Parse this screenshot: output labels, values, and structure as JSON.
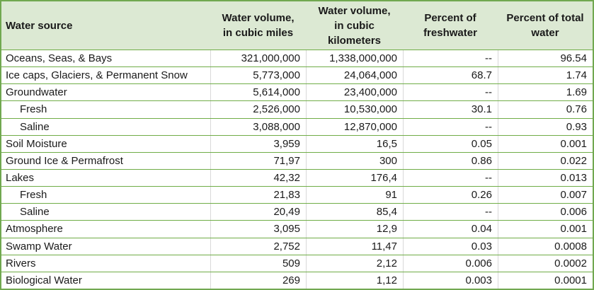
{
  "colors": {
    "outer_border": "#71a850",
    "row_border": "#70ad47",
    "column_border": "#d9d9d9",
    "header_background": "#dce9d3",
    "text": "#1a1a1a"
  },
  "table": {
    "columns": [
      {
        "label": "Water source"
      },
      {
        "label": "Water volume,\nin cubic miles"
      },
      {
        "label": "Water volume,\nin cubic\nkilometers"
      },
      {
        "label": "Percent of\nfreshwater"
      },
      {
        "label": "Percent of total\nwater"
      }
    ],
    "rows": [
      {
        "source": "Oceans, Seas, & Bays",
        "indent": false,
        "miles": "321,000,000",
        "km": "1,338,000,000",
        "freshwater": "--",
        "total": "96.54"
      },
      {
        "source": "Ice caps, Glaciers, & Permanent Snow",
        "indent": false,
        "miles": "5,773,000",
        "km": "24,064,000",
        "freshwater": "68.7",
        "total": "1.74"
      },
      {
        "source": "Groundwater",
        "indent": false,
        "miles": "5,614,000",
        "km": "23,400,000",
        "freshwater": "--",
        "total": "1.69"
      },
      {
        "source": "Fresh",
        "indent": true,
        "miles": "2,526,000",
        "km": "10,530,000",
        "freshwater": "30.1",
        "total": "0.76"
      },
      {
        "source": "Saline",
        "indent": true,
        "miles": "3,088,000",
        "km": "12,870,000",
        "freshwater": "--",
        "total": "0.93"
      },
      {
        "source": "Soil Moisture",
        "indent": false,
        "miles": "3,959",
        "km": "16,5",
        "freshwater": "0.05",
        "total": "0.001"
      },
      {
        "source": "Ground Ice & Permafrost",
        "indent": false,
        "miles": "71,97",
        "km": "300",
        "freshwater": "0.86",
        "total": "0.022"
      },
      {
        "source": "Lakes",
        "indent": false,
        "miles": "42,32",
        "km": "176,4",
        "freshwater": "--",
        "total": "0.013"
      },
      {
        "source": "Fresh",
        "indent": true,
        "miles": "21,83",
        "km": "91",
        "freshwater": "0.26",
        "total": "0.007"
      },
      {
        "source": "Saline",
        "indent": true,
        "miles": "20,49",
        "km": "85,4",
        "freshwater": "--",
        "total": "0.006"
      },
      {
        "source": "Atmosphere",
        "indent": false,
        "miles": "3,095",
        "km": "12,9",
        "freshwater": "0.04",
        "total": "0.001"
      },
      {
        "source": "Swamp Water",
        "indent": false,
        "miles": "2,752",
        "km": "11,47",
        "freshwater": "0.03",
        "total": "0.0008"
      },
      {
        "source": "Rivers",
        "indent": false,
        "miles": "509",
        "km": "2,12",
        "freshwater": "0.006",
        "total": "0.0002"
      },
      {
        "source": "Biological Water",
        "indent": false,
        "miles": "269",
        "km": "1,12",
        "freshwater": "0.003",
        "total": "0.0001"
      }
    ]
  }
}
